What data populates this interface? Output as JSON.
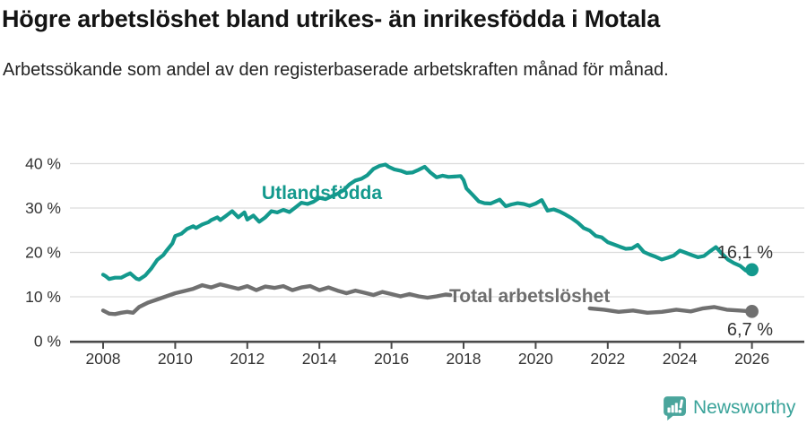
{
  "header": {
    "title": "Högre arbetslöshet bland utrikes- än inrikesfödda i Motala",
    "subtitle": "Arbetssökande som andel av den registerbaserade arbetskraften månad för månad."
  },
  "footer": {
    "brand": "Newsworthy",
    "logo_icon": "speech-bubble-bar-chart-icon",
    "brand_color": "#3aa39a",
    "logo_fill": "#4aa59c"
  },
  "chart_data": {
    "type": "line",
    "title": "Högre arbetslöshet bland utrikes- än inrikesfödda i Motala",
    "subtitle": "Arbetssökande som andel av den registerbaserade arbetskraften månad för månad.",
    "grid": true,
    "x_axis": {
      "ticks": [
        2008,
        2010,
        2012,
        2014,
        2016,
        2018,
        2020,
        2022,
        2024,
        2026
      ],
      "min": 2007.1,
      "max": 2027.4
    },
    "y_axis": {
      "tick_values": [
        0,
        10,
        20,
        30,
        40
      ],
      "tick_labels": [
        "0 %",
        "10 %",
        "20 %",
        "30 %",
        "40 %"
      ],
      "min": 0,
      "max": 40,
      "unit": "%"
    },
    "colors": {
      "gridline": "#dcdcdc",
      "axis": "#4a4a4a",
      "tick_text": "#333333"
    },
    "series": [
      {
        "name": "Utlandsfödda",
        "color": "#13998d",
        "end_label": "16,1 %",
        "end_value": 16.1,
        "segments": [
          [
            [
              2008.0,
              15.0
            ],
            [
              2008.08,
              14.6
            ],
            [
              2008.17,
              14.0
            ],
            [
              2008.33,
              14.3
            ],
            [
              2008.5,
              14.3
            ],
            [
              2008.67,
              15.0
            ],
            [
              2008.75,
              15.3
            ],
            [
              2008.92,
              14.1
            ],
            [
              2009.0,
              13.9
            ],
            [
              2009.17,
              14.8
            ],
            [
              2009.33,
              16.3
            ],
            [
              2009.5,
              18.3
            ],
            [
              2009.67,
              19.4
            ],
            [
              2009.75,
              20.3
            ],
            [
              2009.92,
              22.0
            ],
            [
              2010.0,
              23.7
            ],
            [
              2010.17,
              24.2
            ],
            [
              2010.33,
              25.3
            ],
            [
              2010.5,
              25.9
            ],
            [
              2010.58,
              25.5
            ],
            [
              2010.75,
              26.3
            ],
            [
              2010.92,
              26.8
            ],
            [
              2011.0,
              27.3
            ],
            [
              2011.17,
              27.9
            ],
            [
              2011.25,
              27.3
            ],
            [
              2011.42,
              28.3
            ],
            [
              2011.58,
              29.3
            ],
            [
              2011.75,
              27.9
            ],
            [
              2011.92,
              29.0
            ],
            [
              2012.0,
              27.4
            ],
            [
              2012.17,
              28.3
            ],
            [
              2012.33,
              26.9
            ],
            [
              2012.5,
              27.9
            ],
            [
              2012.67,
              29.3
            ],
            [
              2012.83,
              29.0
            ],
            [
              2013.0,
              29.6
            ],
            [
              2013.17,
              29.1
            ],
            [
              2013.33,
              30.1
            ],
            [
              2013.5,
              31.2
            ],
            [
              2013.67,
              30.9
            ],
            [
              2013.83,
              31.4
            ],
            [
              2014.0,
              32.3
            ],
            [
              2014.17,
              32.0
            ],
            [
              2014.33,
              32.6
            ],
            [
              2014.5,
              33.2
            ],
            [
              2014.67,
              34.0
            ],
            [
              2014.83,
              35.3
            ],
            [
              2015.0,
              36.2
            ],
            [
              2015.17,
              36.6
            ],
            [
              2015.33,
              37.4
            ],
            [
              2015.5,
              38.8
            ],
            [
              2015.67,
              39.5
            ],
            [
              2015.83,
              39.8
            ],
            [
              2015.92,
              39.3
            ],
            [
              2016.08,
              38.7
            ],
            [
              2016.25,
              38.4
            ],
            [
              2016.42,
              37.9
            ],
            [
              2016.58,
              38.0
            ],
            [
              2016.75,
              38.6
            ],
            [
              2016.92,
              39.3
            ],
            [
              2017.08,
              38.0
            ],
            [
              2017.25,
              36.9
            ],
            [
              2017.42,
              37.3
            ],
            [
              2017.58,
              37.0
            ],
            [
              2017.75,
              37.1
            ],
            [
              2017.92,
              37.2
            ],
            [
              2018.0,
              36.3
            ],
            [
              2018.08,
              34.4
            ],
            [
              2018.25,
              33.0
            ],
            [
              2018.42,
              31.5
            ],
            [
              2018.58,
              31.1
            ],
            [
              2018.75,
              31.0
            ],
            [
              2018.92,
              31.6
            ],
            [
              2019.0,
              31.9
            ],
            [
              2019.17,
              30.4
            ],
            [
              2019.33,
              30.8
            ],
            [
              2019.5,
              31.1
            ],
            [
              2019.67,
              30.9
            ],
            [
              2019.83,
              30.5
            ],
            [
              2020.0,
              31.0
            ],
            [
              2020.17,
              31.8
            ],
            [
              2020.33,
              29.4
            ],
            [
              2020.5,
              29.7
            ],
            [
              2020.67,
              29.2
            ],
            [
              2020.83,
              28.5
            ],
            [
              2021.0,
              27.7
            ],
            [
              2021.17,
              26.7
            ],
            [
              2021.33,
              25.5
            ],
            [
              2021.5,
              24.9
            ],
            [
              2021.67,
              23.7
            ],
            [
              2021.83,
              23.4
            ],
            [
              2022.0,
              22.3
            ],
            [
              2022.17,
              21.8
            ],
            [
              2022.33,
              21.3
            ],
            [
              2022.5,
              20.8
            ],
            [
              2022.67,
              20.9
            ],
            [
              2022.83,
              21.7
            ],
            [
              2023.0,
              20.1
            ],
            [
              2023.17,
              19.5
            ],
            [
              2023.33,
              19.0
            ],
            [
              2023.5,
              18.4
            ],
            [
              2023.67,
              18.8
            ],
            [
              2023.83,
              19.3
            ],
            [
              2024.0,
              20.4
            ],
            [
              2024.17,
              19.9
            ],
            [
              2024.33,
              19.4
            ],
            [
              2024.5,
              18.9
            ],
            [
              2024.67,
              19.2
            ],
            [
              2024.83,
              20.2
            ],
            [
              2025.0,
              21.2
            ],
            [
              2025.17,
              19.7
            ],
            [
              2025.33,
              18.4
            ],
            [
              2025.5,
              17.6
            ],
            [
              2025.67,
              17.0
            ],
            [
              2025.83,
              15.9
            ],
            [
              2026.0,
              16.1
            ]
          ]
        ]
      },
      {
        "name": "Total arbetslöshet",
        "color": "#707070",
        "end_label": "6,7 %",
        "end_value": 6.7,
        "segments": [
          [
            [
              2008.0,
              6.9
            ],
            [
              2008.17,
              6.2
            ],
            [
              2008.33,
              6.1
            ],
            [
              2008.5,
              6.4
            ],
            [
              2008.67,
              6.6
            ],
            [
              2008.83,
              6.4
            ],
            [
              2009.0,
              7.7
            ],
            [
              2009.25,
              8.7
            ],
            [
              2009.5,
              9.4
            ],
            [
              2009.75,
              10.1
            ],
            [
              2010.0,
              10.8
            ],
            [
              2010.25,
              11.3
            ],
            [
              2010.5,
              11.8
            ],
            [
              2010.75,
              12.6
            ],
            [
              2011.0,
              12.1
            ],
            [
              2011.25,
              12.8
            ],
            [
              2011.5,
              12.3
            ],
            [
              2011.75,
              11.8
            ],
            [
              2012.0,
              12.4
            ],
            [
              2012.25,
              11.5
            ],
            [
              2012.5,
              12.3
            ],
            [
              2012.75,
              12.0
            ],
            [
              2013.0,
              12.4
            ],
            [
              2013.25,
              11.5
            ],
            [
              2013.5,
              12.1
            ],
            [
              2013.75,
              12.4
            ],
            [
              2014.0,
              11.5
            ],
            [
              2014.25,
              12.1
            ],
            [
              2014.5,
              11.4
            ],
            [
              2014.75,
              10.8
            ],
            [
              2015.0,
              11.4
            ],
            [
              2015.25,
              10.9
            ],
            [
              2015.5,
              10.4
            ],
            [
              2015.75,
              11.1
            ],
            [
              2016.0,
              10.6
            ],
            [
              2016.25,
              10.1
            ],
            [
              2016.5,
              10.6
            ],
            [
              2016.75,
              10.1
            ],
            [
              2017.0,
              9.8
            ],
            [
              2017.25,
              10.1
            ],
            [
              2017.5,
              10.5
            ],
            [
              2017.63,
              10.4
            ]
          ],
          [
            [
              2021.5,
              7.4
            ],
            [
              2021.9,
              7.1
            ],
            [
              2022.3,
              6.6
            ],
            [
              2022.7,
              6.9
            ],
            [
              2023.1,
              6.4
            ],
            [
              2023.5,
              6.6
            ],
            [
              2023.9,
              7.1
            ],
            [
              2024.3,
              6.7
            ],
            [
              2024.65,
              7.4
            ],
            [
              2024.95,
              7.7
            ],
            [
              2025.3,
              7.1
            ],
            [
              2025.65,
              6.9
            ],
            [
              2026.0,
              6.7
            ]
          ]
        ]
      }
    ],
    "legend_position": "inline-labels"
  }
}
